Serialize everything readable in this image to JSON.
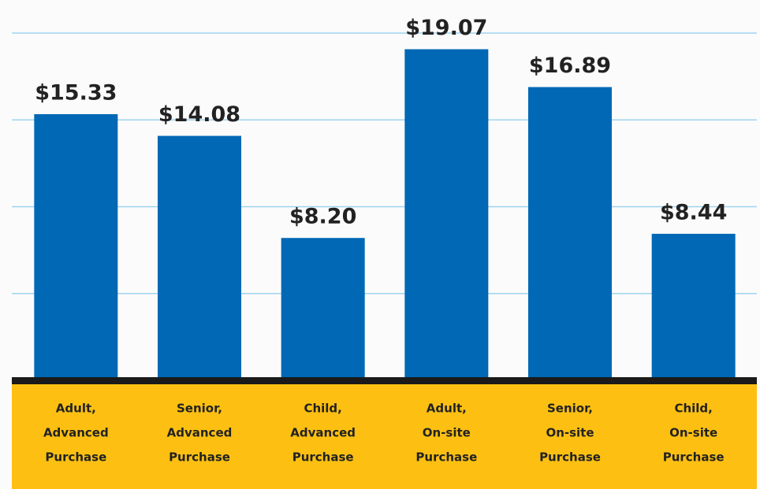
{
  "chart_data": {
    "type": "bar",
    "categories": [
      [
        "Adult,",
        "Advanced",
        "Purchase"
      ],
      [
        "Senior,",
        "Advanced",
        "Purchase"
      ],
      [
        "Child,",
        "Advanced",
        "Purchase"
      ],
      [
        "Adult,",
        "On-site",
        "Purchase"
      ],
      [
        "Senior,",
        "On-site",
        "Purchase"
      ],
      [
        "Child,",
        "On-site",
        "Purchase"
      ]
    ],
    "values": [
      15.33,
      14.08,
      8.2,
      19.07,
      16.89,
      8.44
    ],
    "value_labels": [
      "$15.33",
      "$14.08",
      "$8.20",
      "$19.07",
      "$16.89",
      "$8.44"
    ],
    "color": "#0068b5",
    "ylim": [
      0,
      20
    ],
    "yticks": [
      5,
      10,
      15,
      20
    ],
    "grid": true
  }
}
